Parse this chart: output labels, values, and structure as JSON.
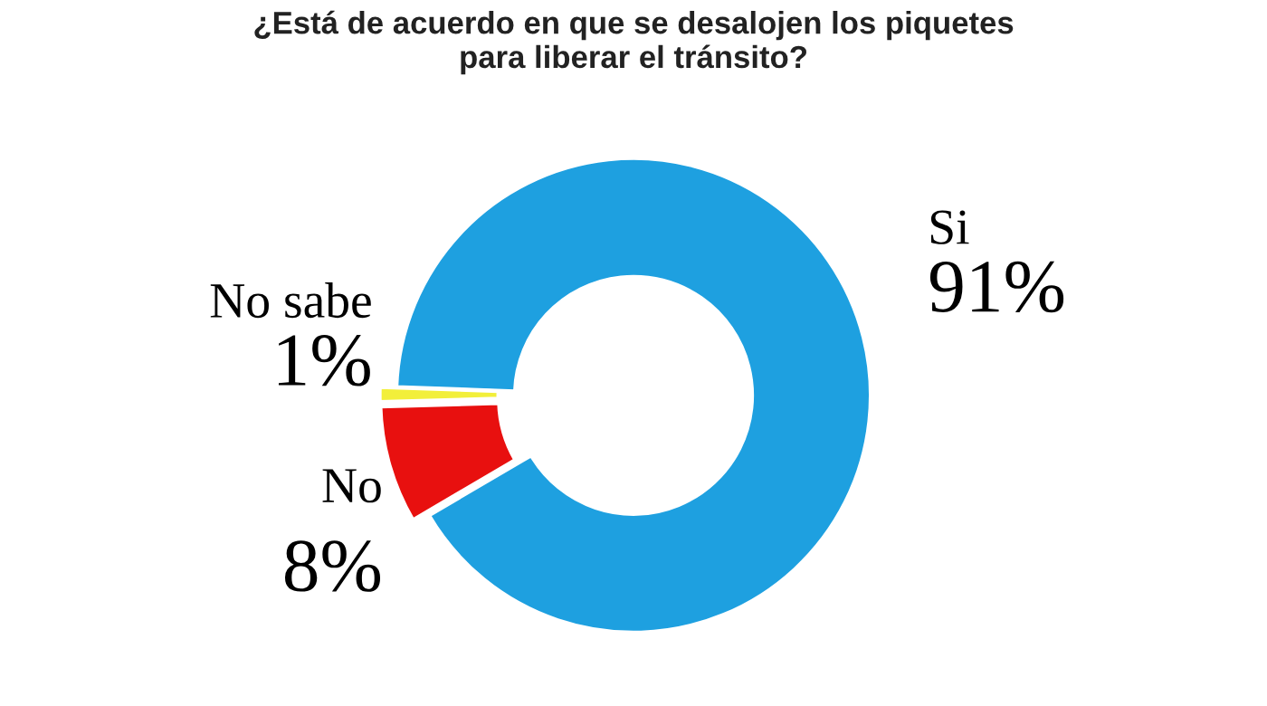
{
  "chart_data": {
    "type": "donut",
    "title": "¿Está de acuerdo en que se desalojen los piquetes\npara liberar el tránsito?",
    "categories": [
      "Si",
      "No",
      "No sabe"
    ],
    "values": [
      91,
      8,
      1
    ],
    "value_labels": [
      "91%",
      "8%",
      "1%"
    ],
    "colors": [
      "#1ea0e0",
      "#e8100f",
      "#f2ef3a"
    ]
  }
}
